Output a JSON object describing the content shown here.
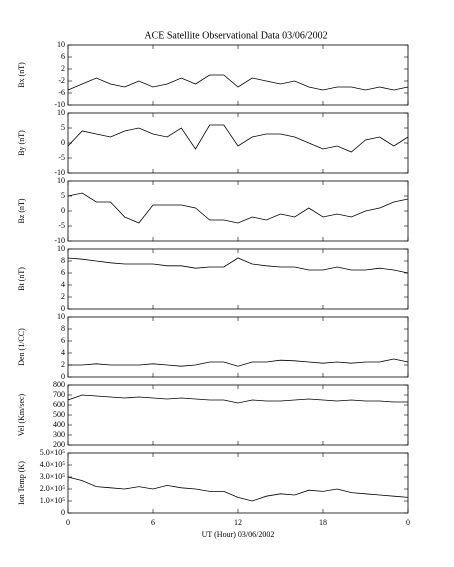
{
  "title": "ACE Satellite Observational Data   03/06/2002",
  "chart_data": [
    {
      "type": "line",
      "y_label": "Bx (nT)",
      "color": "#000000",
      "x": [
        0,
        1,
        2,
        3,
        4,
        5,
        6,
        7,
        8,
        9,
        10,
        11,
        12,
        13,
        14,
        15,
        16,
        17,
        18,
        19,
        20,
        21,
        22,
        23,
        24
      ],
      "values": [
        -5,
        -3,
        -1,
        -3,
        -4,
        -2,
        -4,
        -3,
        -1,
        -3,
        0,
        0,
        -4,
        -1,
        -2,
        -3,
        -2,
        -4,
        -5,
        -4,
        -4,
        -5,
        -4,
        -5,
        -4
      ],
      "xlim": [
        0,
        24
      ],
      "ylim": [
        -10,
        10
      ],
      "yticks": [
        -10,
        -6,
        -2,
        2,
        6,
        10
      ]
    },
    {
      "type": "line",
      "y_label": "By (nT)",
      "color": "#000000",
      "x": [
        0,
        1,
        2,
        3,
        4,
        5,
        6,
        7,
        8,
        9,
        10,
        11,
        12,
        13,
        14,
        15,
        16,
        17,
        18,
        19,
        20,
        21,
        22,
        23,
        24
      ],
      "values": [
        -1,
        4,
        3,
        2,
        4,
        5,
        3,
        2,
        5,
        -2,
        6,
        6,
        -1,
        2,
        3,
        3,
        2,
        0,
        -2,
        -1,
        -3,
        1,
        2,
        -1,
        2
      ],
      "xlim": [
        0,
        24
      ],
      "ylim": [
        -10,
        10
      ],
      "yticks": [
        -10,
        -5,
        0,
        5,
        10
      ]
    },
    {
      "type": "line",
      "y_label": "Bz (nT)",
      "color": "#000000",
      "x": [
        0,
        1,
        2,
        3,
        4,
        5,
        6,
        7,
        8,
        9,
        10,
        11,
        12,
        13,
        14,
        15,
        16,
        17,
        18,
        19,
        20,
        21,
        22,
        23,
        24
      ],
      "values": [
        5,
        6,
        3,
        3,
        -2,
        -4,
        2,
        2,
        2,
        1,
        -3,
        -3,
        -4,
        -2,
        -3,
        -1,
        -2,
        1,
        -2,
        -1,
        -2,
        0,
        1,
        3,
        4
      ],
      "xlim": [
        0,
        24
      ],
      "ylim": [
        -10,
        10
      ],
      "yticks": [
        -10,
        -5,
        0,
        5,
        10
      ]
    },
    {
      "type": "line",
      "y_label": "Bt (nT)",
      "color": "#000000",
      "x": [
        0,
        1,
        2,
        3,
        4,
        5,
        6,
        7,
        8,
        9,
        10,
        11,
        12,
        13,
        14,
        15,
        16,
        17,
        18,
        19,
        20,
        21,
        22,
        23,
        24
      ],
      "values": [
        8.5,
        8.3,
        8,
        7.7,
        7.5,
        7.5,
        7.5,
        7.2,
        7.2,
        6.8,
        7,
        7,
        8.5,
        7.5,
        7.2,
        7,
        7,
        6.5,
        6.5,
        7,
        6.5,
        6.5,
        6.8,
        6.5,
        6
      ],
      "xlim": [
        0,
        24
      ],
      "ylim": [
        0,
        10
      ],
      "yticks": [
        0,
        2,
        4,
        6,
        8,
        10
      ]
    },
    {
      "type": "line",
      "y_label": "Den (1/CC)",
      "color": "#000000",
      "x": [
        0,
        1,
        2,
        3,
        4,
        5,
        6,
        7,
        8,
        9,
        10,
        11,
        12,
        13,
        14,
        15,
        16,
        17,
        18,
        19,
        20,
        21,
        22,
        23,
        24
      ],
      "values": [
        2,
        2,
        2.2,
        2,
        2,
        2,
        2.2,
        2,
        1.8,
        2,
        2.5,
        2.5,
        1.8,
        2.5,
        2.5,
        2.8,
        2.7,
        2.5,
        2.3,
        2.5,
        2.3,
        2.5,
        2.5,
        3,
        2.5
      ],
      "xlim": [
        0,
        24
      ],
      "ylim": [
        0,
        10
      ],
      "yticks": [
        0,
        2,
        4,
        6,
        8,
        10
      ]
    },
    {
      "type": "line",
      "y_label": "Vel (Km/sec)",
      "color": "#000000",
      "x": [
        0,
        1,
        2,
        3,
        4,
        5,
        6,
        7,
        8,
        9,
        10,
        11,
        12,
        13,
        14,
        15,
        16,
        17,
        18,
        19,
        20,
        21,
        22,
        23,
        24
      ],
      "values": [
        650,
        700,
        690,
        680,
        670,
        680,
        670,
        660,
        670,
        660,
        650,
        650,
        620,
        650,
        640,
        640,
        650,
        660,
        650,
        640,
        650,
        640,
        640,
        630,
        630
      ],
      "xlim": [
        0,
        24
      ],
      "ylim": [
        200,
        800
      ],
      "yticks": [
        200,
        300,
        400,
        500,
        600,
        700,
        800
      ]
    },
    {
      "type": "line",
      "y_label": "Ion Temp (K)",
      "color": "#000000",
      "x": [
        0,
        1,
        2,
        3,
        4,
        5,
        6,
        7,
        8,
        9,
        10,
        11,
        12,
        13,
        14,
        15,
        16,
        17,
        18,
        19,
        20,
        21,
        22,
        23,
        24
      ],
      "values": [
        300000,
        270000,
        220000,
        210000,
        200000,
        220000,
        200000,
        230000,
        210000,
        200000,
        180000,
        180000,
        130000,
        100000,
        140000,
        160000,
        150000,
        190000,
        180000,
        200000,
        170000,
        160000,
        150000,
        140000,
        130000
      ],
      "xlim": [
        0,
        24
      ],
      "ylim": [
        0,
        500000
      ],
      "yticks": [
        0,
        {
          "value": 100000,
          "label": "1.0×10⁵"
        },
        {
          "value": 200000,
          "label": "2.0×10⁵"
        },
        {
          "value": 300000,
          "label": "3.0×10⁵"
        },
        {
          "value": 400000,
          "label": "4.0×10⁵"
        },
        {
          "value": 500000,
          "label": "5.0×10⁵"
        }
      ],
      "xticks": [
        0,
        6,
        12,
        18,
        {
          "value": 24,
          "label": "0"
        }
      ],
      "x_label": "UT (Hour)   03/06/2002"
    }
  ]
}
